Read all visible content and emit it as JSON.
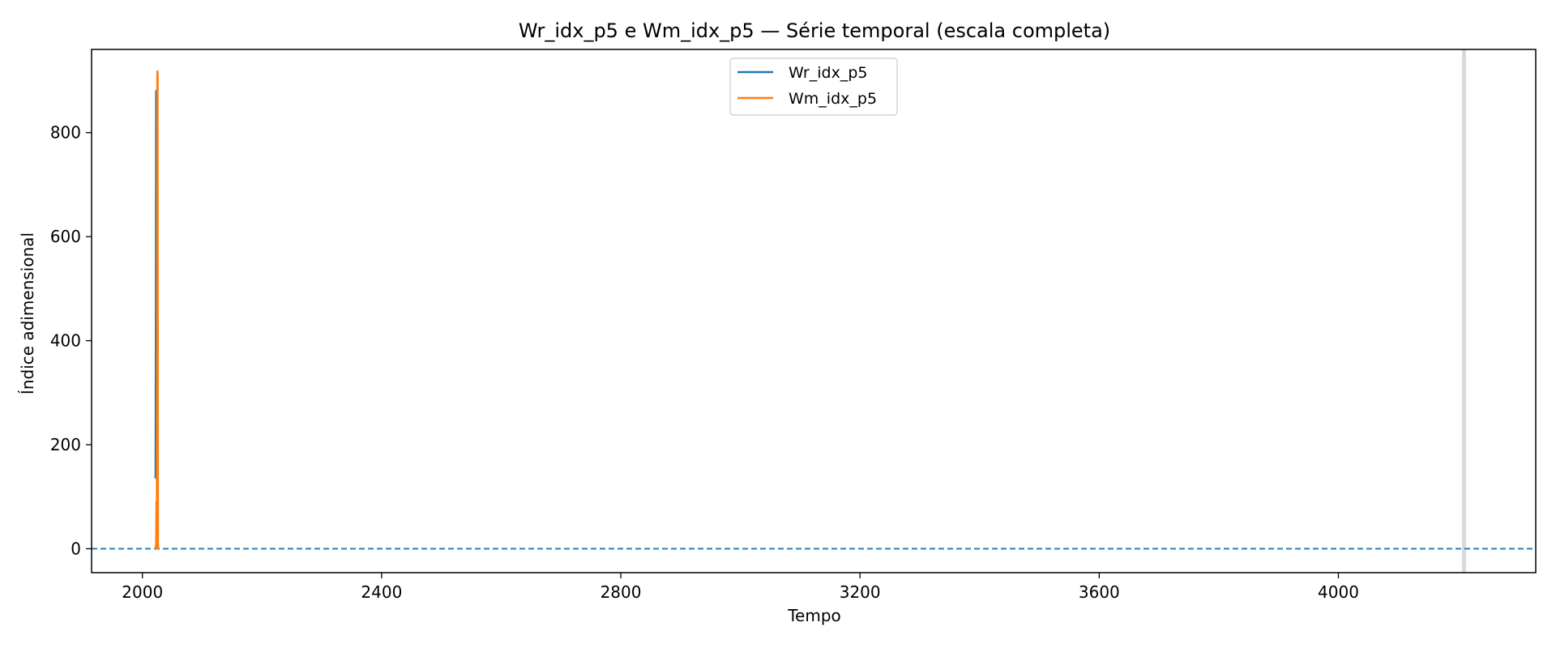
{
  "chart_data": {
    "type": "line",
    "title": "Wr_idx_p5 e Wm_idx_p5 — Série temporal (escala completa)",
    "xlabel": "Tempo",
    "ylabel": "Índice adimensional",
    "xlim": [
      1915,
      4330
    ],
    "ylim": [
      -46,
      960
    ],
    "xticks": [
      2000,
      2400,
      2800,
      3200,
      3600,
      4000
    ],
    "yticks": [
      0,
      200,
      400,
      600,
      800
    ],
    "grid": false,
    "legend_position": "top-center",
    "reference_line": {
      "y": 0,
      "style": "dashed",
      "color": "#1f77b4"
    },
    "shaded_vline": {
      "x": 4210,
      "color": "#d9d9d9"
    },
    "series": [
      {
        "name": "Wr_idx_p5",
        "color": "#1f77b4",
        "x": [
          2022,
          2022.5,
          2023,
          2023.5,
          2024,
          2024.5,
          2025
        ],
        "y": [
          135,
          420,
          880,
          600,
          160,
          140,
          150
        ]
      },
      {
        "name": "Wm_idx_p5",
        "color": "#ff7f0e",
        "x": [
          2022,
          2023,
          2023.5,
          2024,
          2024.5,
          2025,
          2025.5,
          2026,
          2026.5,
          2027
        ],
        "y": [
          0,
          10,
          90,
          0,
          300,
          918,
          910,
          10,
          0,
          0
        ]
      }
    ]
  }
}
